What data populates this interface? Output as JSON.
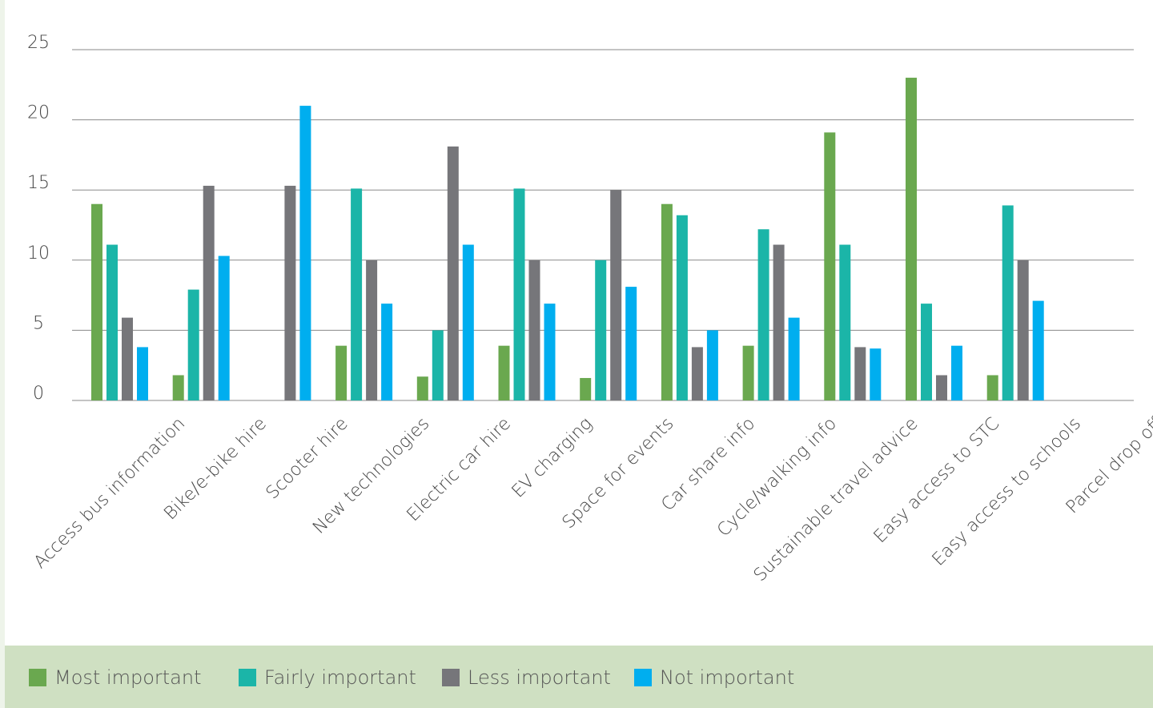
{
  "chart_data": {
    "type": "bar",
    "categories": [
      "Access bus information",
      "Bike/e-bike hire",
      "Scooter hire",
      "New technologies",
      "Electric car hire",
      "EV charging",
      "Space for events",
      "Car share info",
      "Cycle/walking info",
      "Sustainable travel advice",
      "Easy access to STC",
      "Easy access to schools",
      "Parcel drop off"
    ],
    "series": [
      {
        "name": "Most important",
        "color": "#6aa84f",
        "values": [
          14,
          1.8,
          0,
          3.9,
          1.7,
          3.9,
          1.6,
          14,
          3.9,
          19.1,
          23,
          1.8,
          0
        ]
      },
      {
        "name": "Fairly important",
        "color": "#1bb5a8",
        "values": [
          11.1,
          7.9,
          0,
          15.1,
          5,
          15.1,
          10,
          13.2,
          12.2,
          11.1,
          6.9,
          13.9,
          0
        ]
      },
      {
        "name": "Less important",
        "color": "#76767a",
        "values": [
          5.9,
          15.3,
          15.3,
          10,
          18.1,
          10,
          15,
          3.8,
          11.1,
          3.8,
          1.8,
          10,
          0
        ]
      },
      {
        "name": "Not important",
        "color": "#00aeef",
        "values": [
          3.8,
          10.3,
          21,
          6.9,
          11.1,
          6.9,
          8.1,
          5,
          5.9,
          3.7,
          3.9,
          7.1,
          0
        ]
      }
    ],
    "yticks": [
      0,
      5,
      10,
      15,
      20,
      25
    ],
    "ylim": [
      0,
      25
    ],
    "grid": true,
    "legend_position": "bottom",
    "title": "",
    "xlabel": "",
    "ylabel": ""
  }
}
